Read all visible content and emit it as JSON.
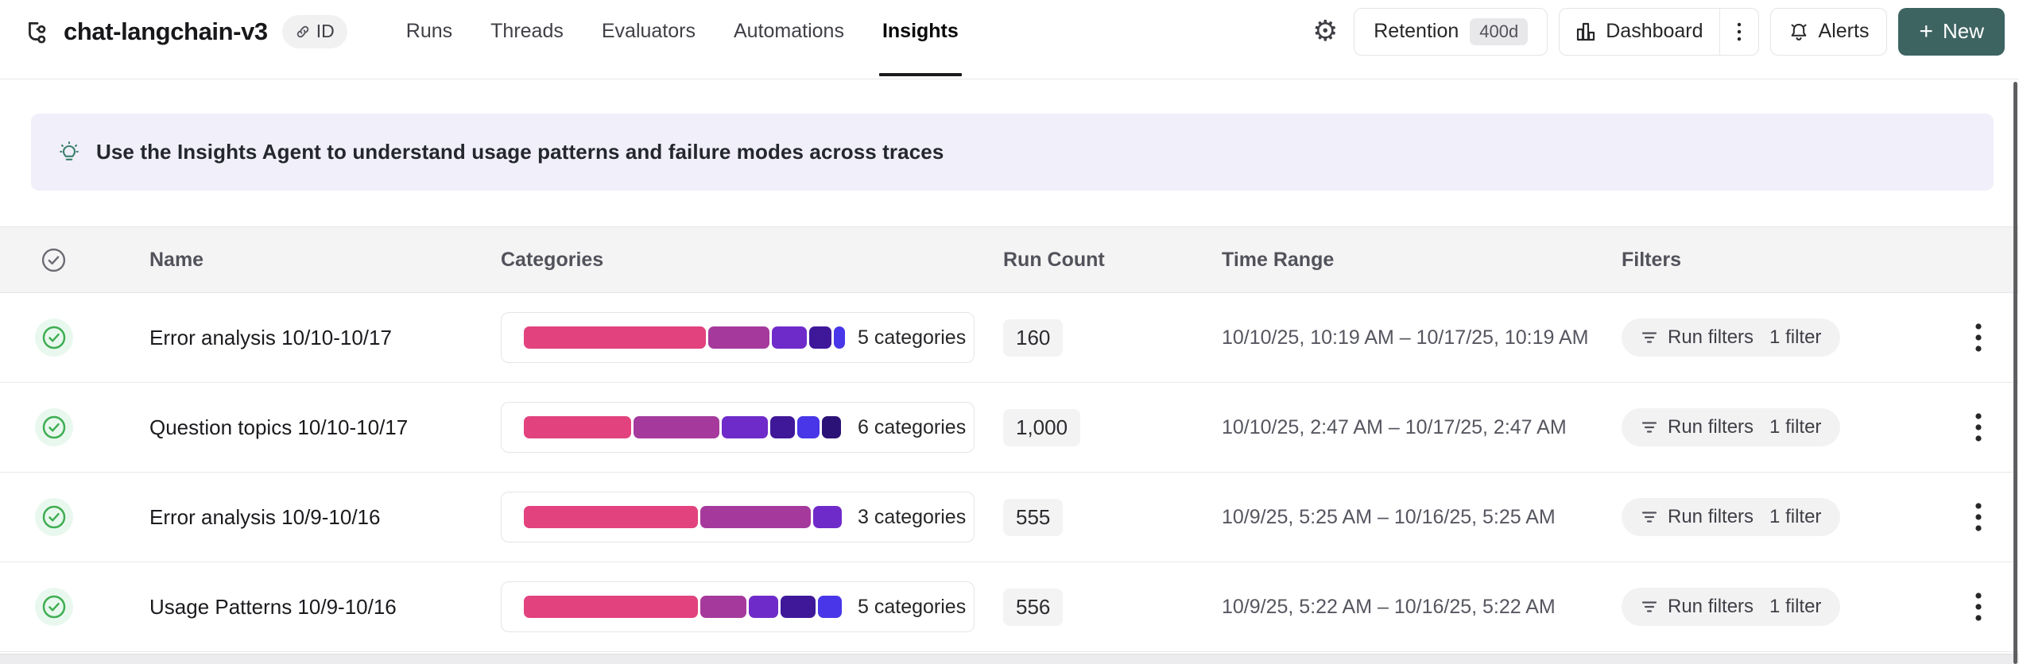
{
  "header": {
    "project_title": "chat-langchain-v3",
    "id_badge_label": "ID",
    "tabs": [
      {
        "label": "Runs",
        "active": false
      },
      {
        "label": "Threads",
        "active": false
      },
      {
        "label": "Evaluators",
        "active": false
      },
      {
        "label": "Automations",
        "active": false
      },
      {
        "label": "Insights",
        "active": true
      }
    ],
    "retention": {
      "label": "Retention",
      "value": "400d"
    },
    "dashboard_label": "Dashboard",
    "alerts_label": "Alerts",
    "new_button": {
      "plus": "+",
      "label": "New"
    }
  },
  "banner": {
    "text": "Use the Insights Agent to understand usage patterns and failure modes across traces"
  },
  "table": {
    "columns": [
      "Name",
      "Categories",
      "Run Count",
      "Time Range",
      "Filters"
    ],
    "rows": [
      {
        "name": "Error analysis 10/10-10/17",
        "categories_label": "5 categories",
        "run_count": "160",
        "time_range": "10/10/25, 10:19 AM – 10/17/25, 10:19 AM",
        "filters_label": "Run filters",
        "filters_count": "1 filter",
        "segments": [
          {
            "color": "#e2427d",
            "pct": 57
          },
          {
            "color": "#a53a9c",
            "pct": 19
          },
          {
            "color": "#6f2bca",
            "pct": 11
          },
          {
            "color": "#3f189a",
            "pct": 7
          },
          {
            "color": "#4836e8",
            "pct": 3.5
          }
        ]
      },
      {
        "name": "Question topics 10/10-10/17",
        "categories_label": "6 categories",
        "run_count": "1,000",
        "time_range": "10/10/25, 2:47 AM – 10/17/25, 2:47 AM",
        "filters_label": "Run filters",
        "filters_count": "1 filter",
        "segments": [
          {
            "color": "#e2427d",
            "pct": 33.5
          },
          {
            "color": "#a53a9c",
            "pct": 27
          },
          {
            "color": "#6f2bca",
            "pct": 14.5
          },
          {
            "color": "#3f189a",
            "pct": 7.5
          },
          {
            "color": "#4836e8",
            "pct": 7
          },
          {
            "color": "#2b1277",
            "pct": 6
          }
        ]
      },
      {
        "name": "Error analysis 10/9-10/16",
        "categories_label": "3 categories",
        "run_count": "555",
        "time_range": "10/9/25, 5:25 AM – 10/16/25, 5:25 AM",
        "filters_label": "Run filters",
        "filters_count": "1 filter",
        "segments": [
          {
            "color": "#e2427d",
            "pct": 54.5
          },
          {
            "color": "#a53a9c",
            "pct": 34.5
          },
          {
            "color": "#6f2bca",
            "pct": 9
          }
        ]
      },
      {
        "name": "Usage Patterns 10/9-10/16",
        "categories_label": "5 categories",
        "run_count": "556",
        "time_range": "10/9/25, 5:22 AM – 10/16/25, 5:22 AM",
        "filters_label": "Run filters",
        "filters_count": "1 filter",
        "segments": [
          {
            "color": "#e2427d",
            "pct": 54.5
          },
          {
            "color": "#a53a9c",
            "pct": 14.5
          },
          {
            "color": "#6f2bca",
            "pct": 9
          },
          {
            "color": "#3f189a",
            "pct": 11
          },
          {
            "color": "#4836e8",
            "pct": 7.5
          }
        ]
      }
    ]
  },
  "colors": {
    "new_button_bg": "#3e6462",
    "banner_bg": "#f0effa",
    "success_green": "#3fae53",
    "table_header_bg": "#f4f4f5",
    "segment_palette": [
      "#e2427d",
      "#a53a9c",
      "#6f2bca",
      "#3f189a",
      "#4836e8",
      "#2b1277"
    ]
  }
}
